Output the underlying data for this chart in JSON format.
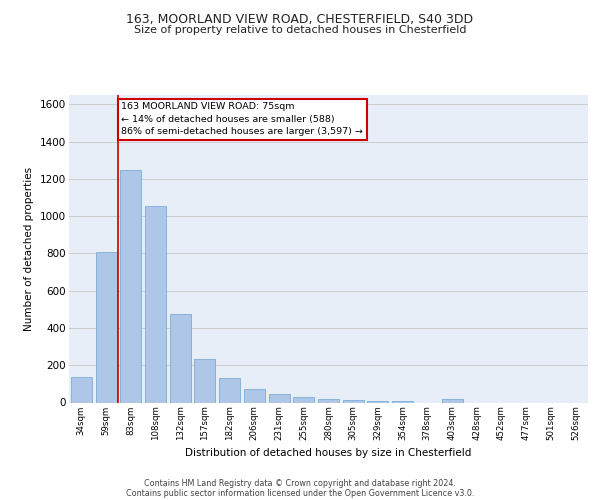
{
  "title_line1": "163, MOORLAND VIEW ROAD, CHESTERFIELD, S40 3DD",
  "title_line2": "Size of property relative to detached houses in Chesterfield",
  "xlabel": "Distribution of detached houses by size in Chesterfield",
  "ylabel": "Number of detached properties",
  "categories": [
    "34sqm",
    "59sqm",
    "83sqm",
    "108sqm",
    "132sqm",
    "157sqm",
    "182sqm",
    "206sqm",
    "231sqm",
    "255sqm",
    "280sqm",
    "305sqm",
    "329sqm",
    "354sqm",
    "378sqm",
    "403sqm",
    "428sqm",
    "452sqm",
    "477sqm",
    "501sqm",
    "526sqm"
  ],
  "values": [
    135,
    805,
    1245,
    1055,
    475,
    232,
    130,
    75,
    43,
    27,
    20,
    13,
    10,
    8,
    0,
    18,
    0,
    0,
    0,
    0,
    0
  ],
  "bar_color": "#aec6e8",
  "bar_edge_color": "#7aadd4",
  "ylim": [
    0,
    1650
  ],
  "yticks": [
    0,
    200,
    400,
    600,
    800,
    1000,
    1200,
    1400,
    1600
  ],
  "grid_color": "#cccccc",
  "background_color": "#e8eef8",
  "footer_line1": "Contains HM Land Registry data © Crown copyright and database right 2024.",
  "footer_line2": "Contains public sector information licensed under the Open Government Licence v3.0.",
  "red_line_color": "#cc0000",
  "annotation_box_text_line1": "163 MOORLAND VIEW ROAD: 75sqm",
  "annotation_box_text_line2": "← 14% of detached houses are smaller (588)",
  "annotation_box_text_line3": "86% of semi-detached houses are larger (3,597) →",
  "annotation_box_facecolor": "#ffffff",
  "annotation_box_edgecolor": "#cc0000",
  "red_line_x": 1.5
}
